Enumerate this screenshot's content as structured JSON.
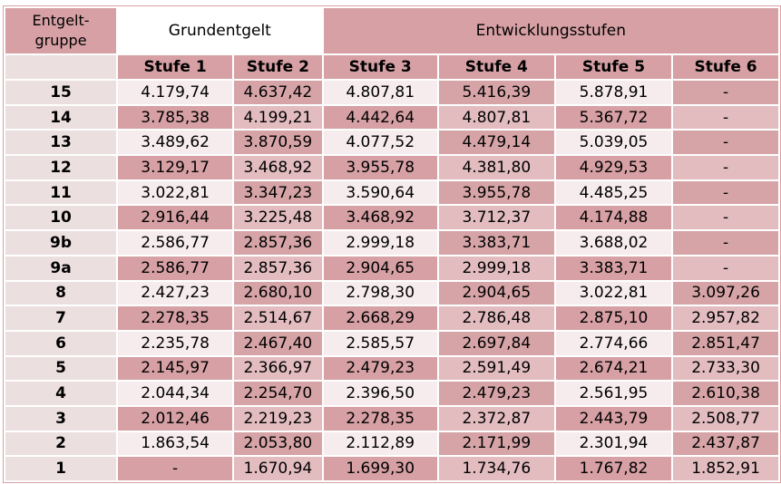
{
  "header": {
    "entgeltgruppe": "Entgelt-\ngruppe",
    "grundentgelt": "Grundentgelt",
    "entwicklungsstufen": "Entwicklungsstufen",
    "stufen": [
      "Stufe 1",
      "Stufe 2",
      "Stufe 3",
      "Stufe 4",
      "Stufe 5",
      "Stufe 6"
    ]
  },
  "rows": [
    {
      "eg": "15",
      "values": [
        "4.179,74",
        "4.637,42",
        "4.807,81",
        "5.416,39",
        "5.878,91",
        "-"
      ]
    },
    {
      "eg": "14",
      "values": [
        "3.785,38",
        "4.199,21",
        "4.442,64",
        "4.807,81",
        "5.367,72",
        "-"
      ]
    },
    {
      "eg": "13",
      "values": [
        "3.489,62",
        "3.870,59",
        "4.077,52",
        "4.479,14",
        "5.039,05",
        "-"
      ]
    },
    {
      "eg": "12",
      "values": [
        "3.129,17",
        "3.468,92",
        "3.955,78",
        "4.381,80",
        "4.929,53",
        "-"
      ]
    },
    {
      "eg": "11",
      "values": [
        "3.022,81",
        "3.347,23",
        "3.590,64",
        "3.955,78",
        "4.485,25",
        "-"
      ]
    },
    {
      "eg": "10",
      "values": [
        "2.916,44",
        "3.225,48",
        "3.468,92",
        "3.712,37",
        "4.174,88",
        "-"
      ]
    },
    {
      "eg": "9b",
      "values": [
        "2.586,77",
        "2.857,36",
        "2.999,18",
        "3.383,71",
        "3.688,02",
        "-"
      ]
    },
    {
      "eg": "9a",
      "values": [
        "2.586,77",
        "2.857,36",
        "2.904,65",
        "2.999,18",
        "3.383,71",
        "-"
      ]
    },
    {
      "eg": "8",
      "values": [
        "2.427,23",
        "2.680,10",
        "2.798,30",
        "2.904,65",
        "3.022,81",
        "3.097,26"
      ]
    },
    {
      "eg": "7",
      "values": [
        "2.278,35",
        "2.514,67",
        "2.668,29",
        "2.786,48",
        "2.875,10",
        "2.957,82"
      ]
    },
    {
      "eg": "6",
      "values": [
        "2.235,78",
        "2.467,40",
        "2.585,57",
        "2.697,84",
        "2.774,66",
        "2.851,47"
      ]
    },
    {
      "eg": "5",
      "values": [
        "2.145,97",
        "2.366,97",
        "2.479,23",
        "2.591,49",
        "2.674,21",
        "2.733,30"
      ]
    },
    {
      "eg": "4",
      "values": [
        "2.044,34",
        "2.254,70",
        "2.396,50",
        "2.479,23",
        "2.561,95",
        "2.610,38"
      ]
    },
    {
      "eg": "3",
      "values": [
        "2.012,46",
        "2.219,23",
        "2.278,35",
        "2.372,87",
        "2.443,79",
        "2.508,77"
      ]
    },
    {
      "eg": "2",
      "values": [
        "1.863,54",
        "2.053,80",
        "2.112,89",
        "2.171,99",
        "2.301,94",
        "2.437,87"
      ]
    },
    {
      "eg": "1",
      "values": [
        "-",
        "1.670,94",
        "1.699,30",
        "1.734,76",
        "1.767,82",
        "1.852,91"
      ]
    }
  ]
}
